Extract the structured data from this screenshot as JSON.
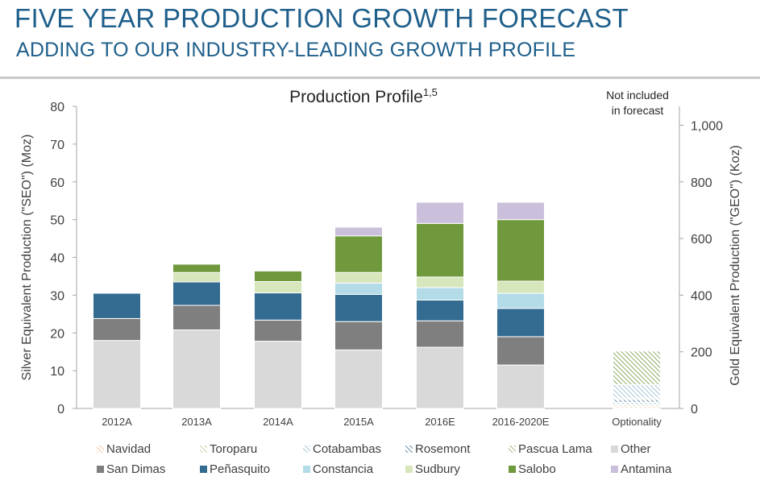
{
  "header": {
    "title": "FIVE YEAR PRODUCTION GROWTH FORECAST",
    "subtitle": "ADDING TO OUR INDUSTRY-LEADING GROWTH PROFILE"
  },
  "chart_data": {
    "type": "bar",
    "stacked": true,
    "title": "Production Profile",
    "title_superscript": "1,5",
    "ylabel": "Silver Equivalent  Production (\"SEO\") (Moz)",
    "y2label": "Gold Equivalent Production (\"GEO\") (Koz)",
    "ylim": [
      0,
      80
    ],
    "yticks": [
      0,
      10,
      20,
      30,
      40,
      50,
      60,
      70,
      80
    ],
    "y2lim": [
      0,
      1066.7
    ],
    "y2ticks": [
      "0",
      "200",
      "400",
      "600",
      "800",
      "1,000"
    ],
    "categories": [
      "2012A",
      "2013A",
      "2014A",
      "2015A",
      "2016E",
      "2016-2020E",
      "Optionality"
    ],
    "annotation": "Not included in forecast",
    "annotation_lines": [
      "Not included",
      "in forecast"
    ],
    "grid": false,
    "legend_position": "bottom",
    "series": [
      {
        "name": "Other",
        "color": "#d9d9d9",
        "pattern": "solid",
        "values": [
          18.0,
          20.8,
          17.8,
          15.5,
          16.2,
          11.5,
          0
        ]
      },
      {
        "name": "San Dimas",
        "color": "#7f7f7f",
        "pattern": "solid",
        "values": [
          5.8,
          6.5,
          5.6,
          7.5,
          7.0,
          7.5,
          0
        ]
      },
      {
        "name": "Peñasquito",
        "color": "#346b91",
        "pattern": "solid",
        "values": [
          6.7,
          6.2,
          7.2,
          7.2,
          5.5,
          7.5,
          0
        ]
      },
      {
        "name": "Constancia",
        "color": "#b4dbe8",
        "pattern": "solid",
        "values": [
          0,
          0,
          0,
          3.0,
          3.3,
          4.0,
          0
        ]
      },
      {
        "name": "Sudbury",
        "color": "#d8e6bc",
        "pattern": "solid",
        "values": [
          0,
          2.5,
          3.0,
          2.8,
          2.8,
          3.2,
          0
        ]
      },
      {
        "name": "Salobo",
        "color": "#70993e",
        "pattern": "solid",
        "values": [
          0,
          2.2,
          2.8,
          9.7,
          14.2,
          16.3,
          0
        ]
      },
      {
        "name": "Antamina",
        "color": "#cbc0db",
        "pattern": "solid",
        "values": [
          0,
          0,
          0,
          2.3,
          5.6,
          4.6,
          0
        ]
      },
      {
        "name": "Navidad",
        "color": "#f2b98a",
        "pattern": "hatch",
        "values": [
          0,
          0,
          0,
          0,
          0,
          0,
          0.5
        ]
      },
      {
        "name": "Toroparu",
        "color": "#b7c98f",
        "pattern": "hatch",
        "values": [
          0,
          0,
          0,
          0,
          0,
          0,
          0.5
        ]
      },
      {
        "name": "Cotabambas",
        "color": "#8fb6cf",
        "pattern": "hatch",
        "values": [
          0,
          0,
          0,
          0,
          0,
          0,
          0.6
        ]
      },
      {
        "name": "Rosemont",
        "color": "#3d6e92",
        "pattern": "hatch",
        "values": [
          0,
          0,
          0,
          0,
          0,
          0,
          0.8
        ]
      },
      {
        "name": "Pascua Lama",
        "color": "#8aa86a",
        "pattern": "hatch",
        "values": [
          0,
          0,
          0,
          0,
          0,
          0,
          0.4
        ]
      },
      {
        "name": "Cotabambas",
        "color": "#8fb6cf",
        "pattern": "hatch",
        "values": [
          0,
          0,
          0,
          0,
          0,
          0,
          3.5
        ]
      },
      {
        "name": "Salobo",
        "color": "#70993e",
        "pattern": "hatch",
        "values": [
          0,
          0,
          0,
          0,
          0,
          0,
          8.9
        ]
      }
    ],
    "legend": [
      {
        "name": "Navidad",
        "color": "#f2b98a",
        "pattern": "hatch"
      },
      {
        "name": "Toroparu",
        "color": "#b7c98f",
        "pattern": "hatch"
      },
      {
        "name": "Cotabambas",
        "color": "#8fb6cf",
        "pattern": "hatch"
      },
      {
        "name": "Rosemont",
        "color": "#3d6e92",
        "pattern": "hatch"
      },
      {
        "name": "Pascua Lama",
        "color": "#8aa86a",
        "pattern": "hatch"
      },
      {
        "name": "Other",
        "color": "#d9d9d9",
        "pattern": "solid"
      },
      {
        "name": "San Dimas",
        "color": "#7f7f7f",
        "pattern": "solid"
      },
      {
        "name": "Peñasquito",
        "color": "#346b91",
        "pattern": "solid"
      },
      {
        "name": "Constancia",
        "color": "#b4dbe8",
        "pattern": "solid"
      },
      {
        "name": "Sudbury",
        "color": "#d8e6bc",
        "pattern": "solid"
      },
      {
        "name": "Salobo",
        "color": "#70993e",
        "pattern": "solid"
      },
      {
        "name": "Antamina",
        "color": "#cbc0db",
        "pattern": "solid"
      }
    ]
  }
}
